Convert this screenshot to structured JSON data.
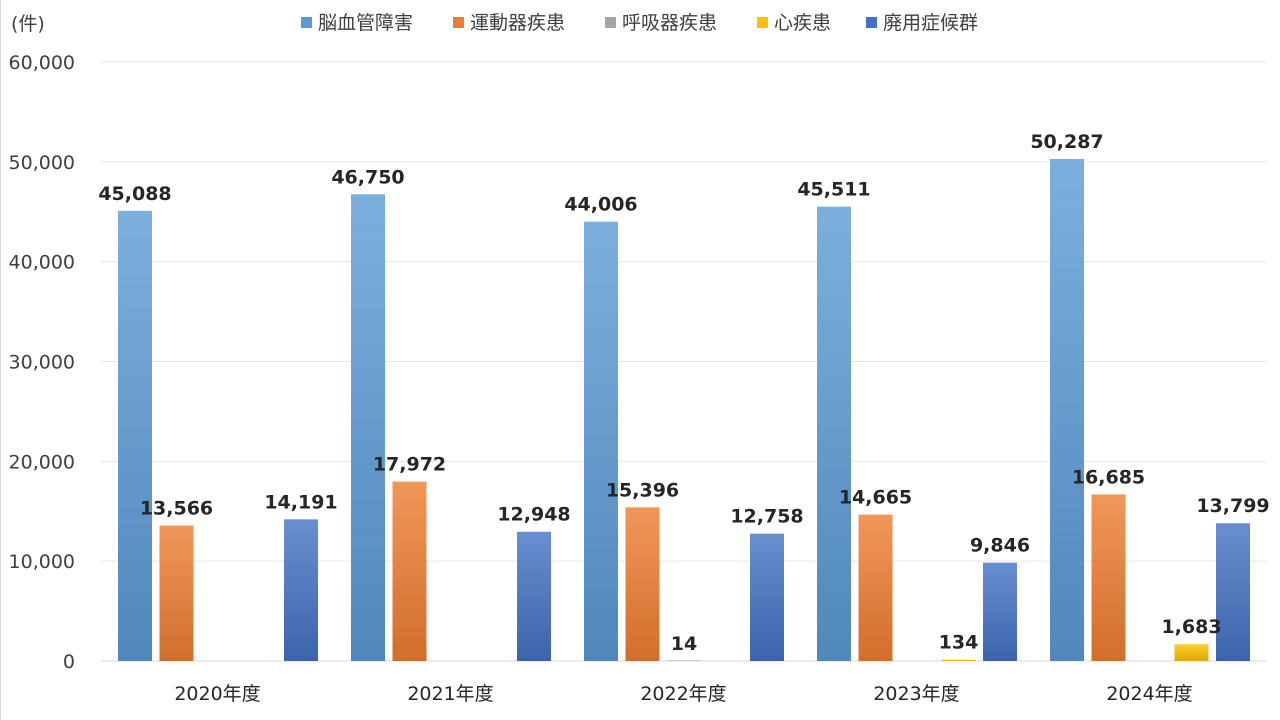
{
  "chart_data": {
    "type": "bar",
    "unit_label": "(件)",
    "categories": [
      "2020年度",
      "2021年度",
      "2022年度",
      "2023年度",
      "2024年度"
    ],
    "series": [
      {
        "name": "脳血管障害",
        "color": "#5b9bd5",
        "values": [
          45088,
          46750,
          44006,
          45511,
          50287
        ]
      },
      {
        "name": "運動器疾患",
        "color": "#ed7d31",
        "values": [
          13566,
          17972,
          15396,
          14665,
          16685
        ]
      },
      {
        "name": "呼吸器疾患",
        "color": "#a5a5a5",
        "values": [
          null,
          null,
          14,
          null,
          null
        ]
      },
      {
        "name": "心疾患",
        "color": "#ffc000",
        "values": [
          null,
          null,
          null,
          134,
          1683
        ]
      },
      {
        "name": "廃用症候群",
        "color": "#4472c4",
        "values": [
          14191,
          12948,
          12758,
          9846,
          13799
        ]
      }
    ],
    "value_labels": [
      [
        "45,088",
        "13,566",
        "",
        "",
        "14,191"
      ],
      [
        "46,750",
        "17,972",
        "",
        "",
        "12,948"
      ],
      [
        "44,006",
        "15,396",
        "14",
        "",
        "12,758"
      ],
      [
        "45,511",
        "14,665",
        "",
        "134",
        "9,846"
      ],
      [
        "50,287",
        "16,685",
        "",
        "1,683",
        "13,799"
      ]
    ],
    "ylim": [
      0,
      60000
    ],
    "yticks": [
      0,
      10000,
      20000,
      30000,
      40000,
      50000,
      60000
    ],
    "ytick_labels": [
      "0",
      "10,000",
      "20,000",
      "30,000",
      "40,000",
      "50,000",
      "60,000"
    ],
    "grid": true,
    "legend_position": "top-center"
  }
}
